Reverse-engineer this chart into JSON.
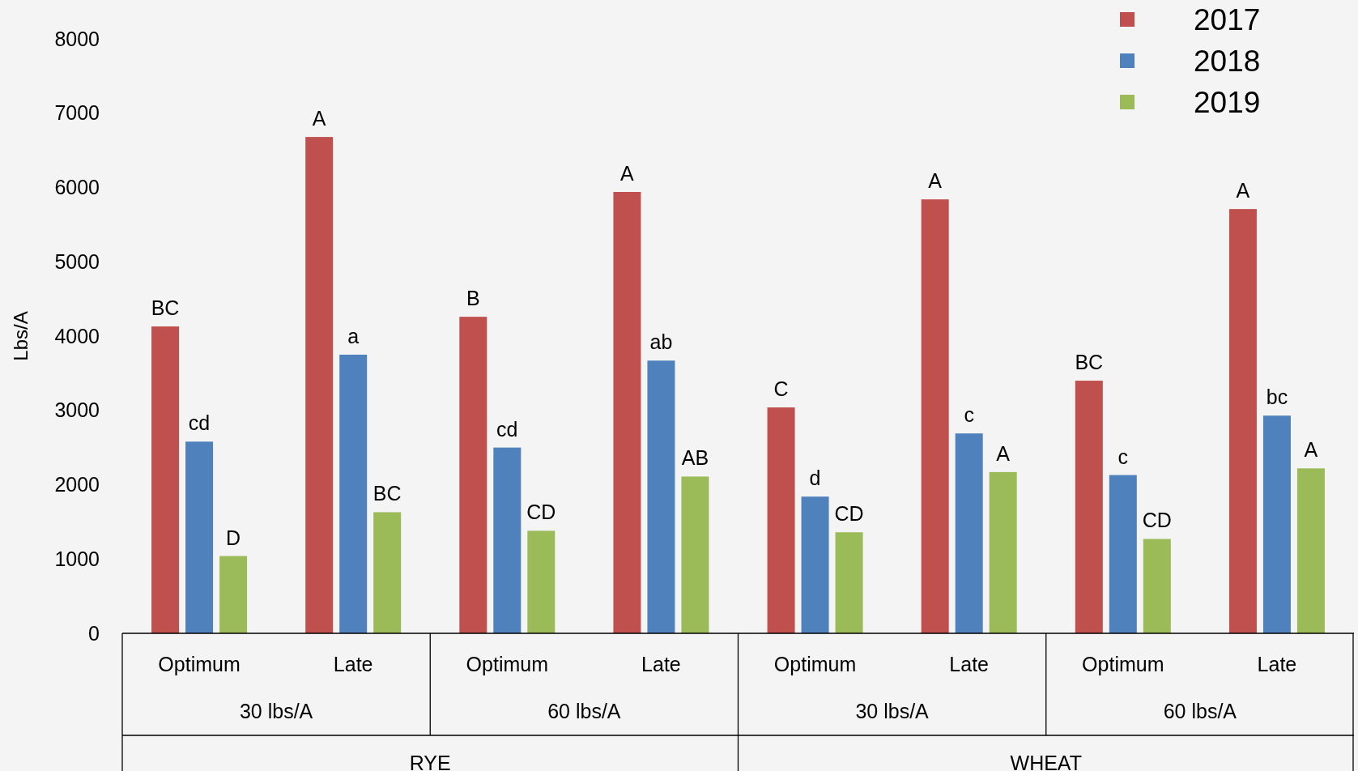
{
  "chart_data": {
    "type": "bar",
    "ylabel": "Lbs/A",
    "categories": [
      "Optimum",
      "Late",
      "Optimum",
      "Late",
      "Optimum",
      "Late",
      "Optimum",
      "Late"
    ],
    "annotations": [
      "30 lbs/A",
      "60 lbs/A",
      "30 lbs/A",
      "60 lbs/A",
      "RYE",
      "WHEAT"
    ],
    "series": [
      {
        "name": "2017",
        "color": "#c0504d",
        "values": [
          4130,
          6680,
          4260,
          5940,
          3040,
          5840,
          3400,
          5710
        ],
        "value_labels": [
          "BC",
          "A",
          "B",
          "A",
          "C",
          "A",
          "BC",
          "A"
        ]
      },
      {
        "name": "2018",
        "color": "#4f81bd",
        "values": [
          2580,
          3750,
          2500,
          3670,
          1840,
          2690,
          2130,
          2930
        ],
        "value_labels": [
          "cd",
          "a",
          "cd",
          "ab",
          "d",
          "c",
          "c",
          "bc"
        ]
      },
      {
        "name": "2019",
        "color": "#9bbb59",
        "values": [
          1040,
          1630,
          1380,
          2110,
          1360,
          2170,
          1270,
          2220
        ],
        "value_labels": [
          "D",
          "BC",
          "CD",
          "AB",
          "CD",
          "A",
          "CD",
          "A"
        ]
      }
    ],
    "ylim": [
      0,
      8000
    ],
    "yticks": [
      0,
      1000,
      2000,
      3000,
      4000,
      5000,
      6000,
      7000,
      8000
    ],
    "legend": "top right",
    "marker": "square"
  }
}
